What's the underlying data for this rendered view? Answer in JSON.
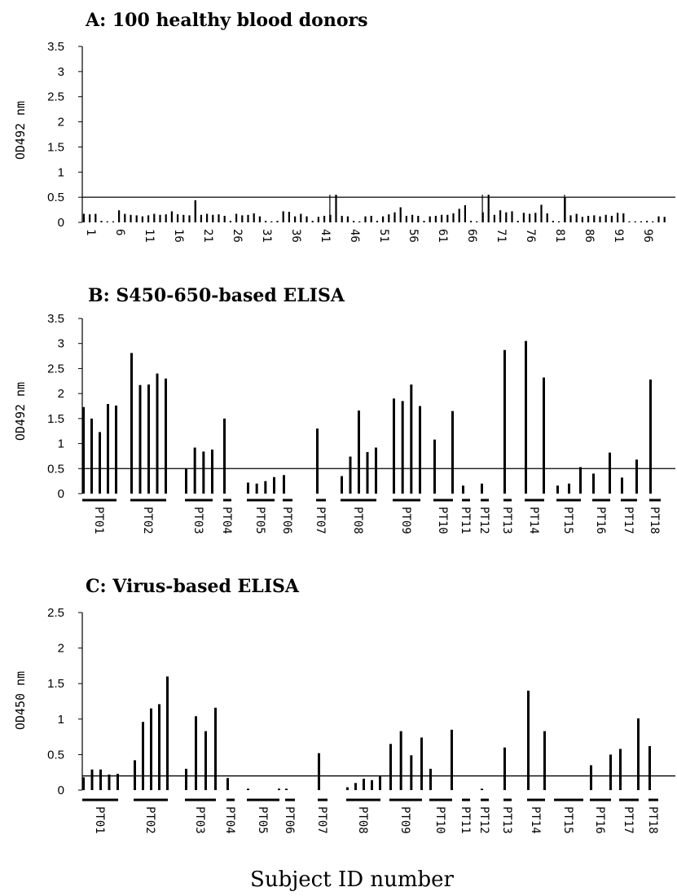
{
  "figure": {
    "xlabel": "Subject ID number"
  },
  "chart_data": [
    {
      "type": "bar",
      "title_letter": "A",
      "title_text": ": 100 healthy blood donors",
      "ylabel": "OD492 nm",
      "ylim": [
        0,
        3.5
      ],
      "yticks": [
        "0",
        "0.5",
        "1",
        "1.5",
        "2",
        "2.5",
        "3",
        "3.5"
      ],
      "cutoff": 0.5,
      "n_subjects": 100,
      "xtick_labels": [
        "1",
        "6",
        "11",
        "16",
        "21",
        "26",
        "31",
        "36",
        "41",
        "46",
        "51",
        "56",
        "61",
        "66",
        "71",
        "76",
        "81",
        "86",
        "91",
        "96"
      ],
      "values": [
        0.17,
        0.16,
        0.17,
        0.03,
        0.02,
        0.02,
        0.24,
        0.17,
        0.15,
        0.14,
        0.12,
        0.14,
        0.17,
        0.15,
        0.16,
        0.22,
        0.16,
        0.15,
        0.14,
        0.44,
        0.15,
        0.17,
        0.15,
        0.16,
        0.13,
        0.03,
        0.17,
        0.14,
        0.15,
        0.18,
        0.12,
        0.03,
        0.02,
        0.03,
        0.22,
        0.21,
        0.12,
        0.17,
        0.12,
        0.03,
        0.11,
        0.13,
        0.15,
        0.55,
        0.13,
        0.12,
        0.03,
        0.02,
        0.12,
        0.13,
        0.03,
        0.12,
        0.16,
        0.2,
        0.3,
        0.13,
        0.15,
        0.13,
        0.03,
        0.12,
        0.13,
        0.15,
        0.15,
        0.18,
        0.27,
        0.34,
        0.03,
        0.02,
        0.2,
        0.55,
        0.15,
        0.24,
        0.2,
        0.22,
        0.03,
        0.19,
        0.17,
        0.19,
        0.35,
        0.18,
        0.03,
        0.02,
        0.5,
        0.14,
        0.17,
        0.11,
        0.13,
        0.14,
        0.12,
        0.15,
        0.13,
        0.19,
        0.18,
        0.02,
        0.02,
        0.02,
        0.03,
        0.02,
        0.12,
        0.11
      ],
      "bold_indices": [
        19,
        42,
        68,
        82
      ]
    },
    {
      "type": "bar",
      "title_letter": "B",
      "title_text": ": S450-650-based ELISA",
      "ylabel": "OD492 nm",
      "ylim": [
        0,
        3.5
      ],
      "yticks": [
        "0",
        "0.5",
        "1",
        "1.5",
        "2",
        "2.5",
        "3",
        "3.5"
      ],
      "cutoff": 0.5,
      "groups": [
        {
          "label": "PT01",
          "values": [
            1.73,
            1.5,
            1.23,
            1.79,
            1.76
          ]
        },
        {
          "label": "PT02",
          "values": [
            2.81,
            2.17,
            2.18,
            2.4,
            2.3
          ]
        },
        {
          "label": "PT03",
          "values": [
            0.5,
            0.92,
            0.84,
            0.88
          ]
        },
        {
          "label": "PT04",
          "values": [
            1.5
          ]
        },
        {
          "label": "PT05",
          "values": [
            0.22,
            0.2,
            0.25,
            0.33
          ]
        },
        {
          "label": "PT06",
          "values": [
            0.37
          ]
        },
        {
          "label": "PT07",
          "values": [
            1.3
          ]
        },
        {
          "label": "PT08",
          "values": [
            0.35,
            0.74,
            1.66,
            0.83,
            0.92
          ]
        },
        {
          "label": "PT09",
          "values": [
            1.9,
            1.85,
            2.18,
            1.75
          ]
        },
        {
          "label": "PT10",
          "values": [
            1.08,
            1.65
          ]
        },
        {
          "label": "PT11",
          "values": [
            0.16
          ]
        },
        {
          "label": "PT12",
          "values": [
            0.2
          ]
        },
        {
          "label": "PT13",
          "values": [
            2.87
          ]
        },
        {
          "label": "PT14",
          "values": [
            3.05,
            2.32
          ]
        },
        {
          "label": "PT15",
          "values": [
            0.16,
            0.2,
            0.53
          ]
        },
        {
          "label": "PT16",
          "values": [
            0.4,
            0.82
          ]
        },
        {
          "label": "PT17",
          "values": [
            0.32,
            0.68
          ]
        },
        {
          "label": "PT18",
          "values": [
            2.28
          ]
        }
      ]
    },
    {
      "type": "bar",
      "title_letter": "C",
      "title_text": ": Virus-based ELISA",
      "ylabel": "OD450 nm",
      "ylim": [
        0,
        2.5
      ],
      "yticks": [
        "0",
        "0.5",
        "1",
        "1.5",
        "2",
        "2.5"
      ],
      "cutoff": 0.2,
      "groups": [
        {
          "label": "PT01",
          "values": [
            0.18,
            0.29,
            0.29,
            0.22,
            0.23
          ]
        },
        {
          "label": "PT02",
          "values": [
            0.42,
            0.96,
            1.15,
            1.21,
            1.6
          ]
        },
        {
          "label": "PT03",
          "values": [
            0.3,
            1.04,
            0.83,
            1.16
          ]
        },
        {
          "label": "PT04",
          "values": [
            0.17
          ]
        },
        {
          "label": "PT05",
          "values": [
            0.02,
            0.02
          ]
        },
        {
          "label": "PT06",
          "values": [
            0.02
          ]
        },
        {
          "label": "PT07",
          "values": [
            0.52
          ]
        },
        {
          "label": "PT08",
          "values": [
            0.04,
            0.1,
            0.16,
            0.14,
            0.2
          ]
        },
        {
          "label": "PT09",
          "values": [
            0.65,
            0.83,
            0.49,
            0.74
          ]
        },
        {
          "label": "PT10",
          "values": [
            0.3,
            0.85
          ]
        },
        {
          "label": "PT11",
          "values": []
        },
        {
          "label": "PT12",
          "values": [
            0.02
          ]
        },
        {
          "label": "PT13",
          "values": [
            0.6
          ]
        },
        {
          "label": "PT14",
          "values": [
            1.4,
            0.83
          ]
        },
        {
          "label": "PT15",
          "values": []
        },
        {
          "label": "PT16",
          "values": [
            0.35,
            0.5
          ]
        },
        {
          "label": "PT17",
          "values": [
            0.58,
            1.01
          ]
        },
        {
          "label": "PT18",
          "values": [
            0.62
          ]
        }
      ]
    }
  ]
}
